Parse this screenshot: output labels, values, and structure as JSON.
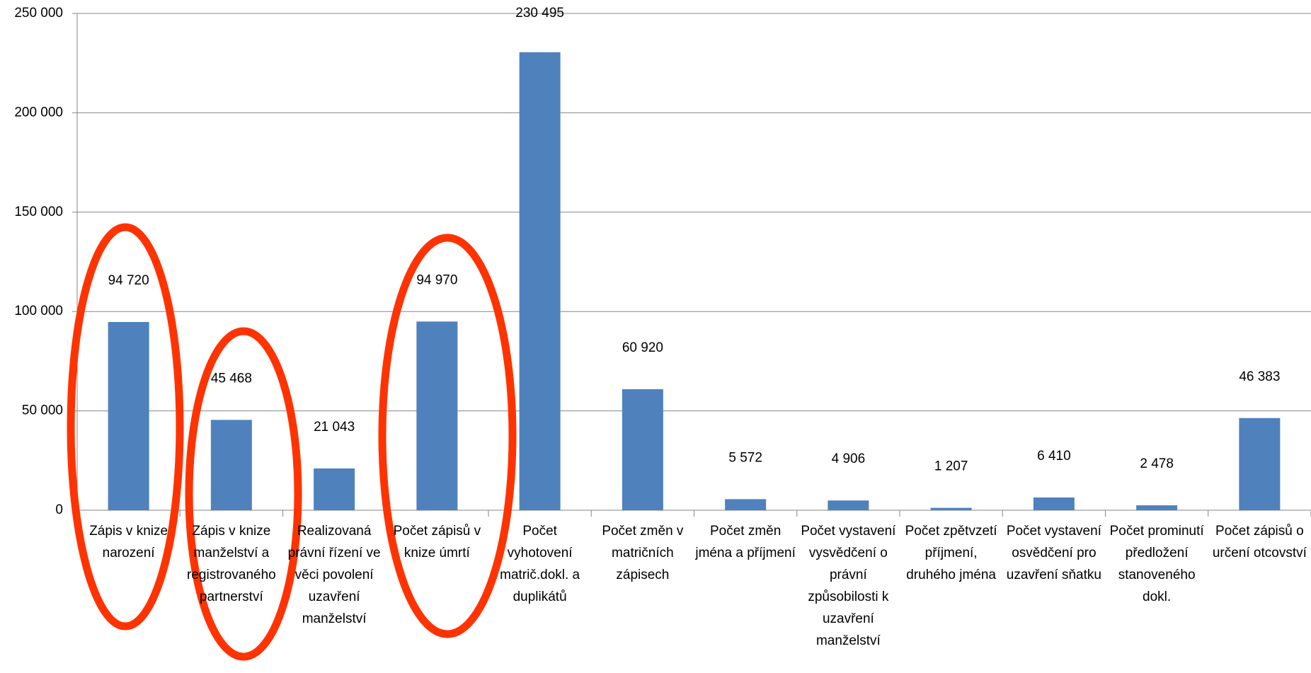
{
  "chart_data": {
    "type": "bar",
    "categories": [
      "Zápis v knize narození",
      "Zápis v knize manželství a registrovaného partnerství",
      "Realizovaná právní řízení ve věci povolení uzavření manželství",
      "Počet zápisů v knize úmrtí",
      "Počet vyhotovení matrič.dokl. a duplikátů",
      "Počet změn v matričních zápisech",
      "Počet změn jména a příjmení",
      "Počet vystavení vysvědčení o právní způsobilosti k uzavření manželství",
      "Počet zpětvzetí příjmení, druhého jména",
      "Počet vystavení osvědčení pro uzavření sňatku",
      "Počet prominutí předložení stanoveného dokl.",
      "Počet zápisů o určení otcovství"
    ],
    "values": [
      94720,
      45468,
      21043,
      94970,
      230495,
      60920,
      5572,
      4906,
      1207,
      6410,
      2478,
      46383
    ],
    "value_labels": [
      "94 720",
      "45 468",
      "21 043",
      "94 970",
      "230 495",
      "60 920",
      "5 572",
      "4 906",
      "1 207",
      "6 410",
      "2 478",
      "46 383"
    ],
    "color": "#4f81bd",
    "ylim": [
      0,
      250000
    ],
    "yticks": [
      {
        "value": 0,
        "label": "0"
      },
      {
        "value": 50000,
        "label": "50 000"
      },
      {
        "value": 100000,
        "label": "100 000"
      },
      {
        "value": 150000,
        "label": "150 000"
      },
      {
        "value": 200000,
        "label": "200 000"
      },
      {
        "value": 250000,
        "label": "250 000"
      }
    ],
    "grid": true
  }
}
